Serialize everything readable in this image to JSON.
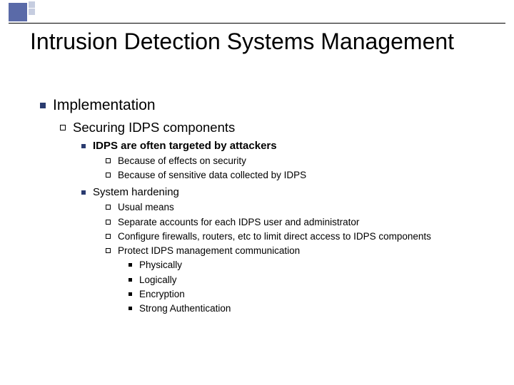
{
  "title": "Intrusion Detection Systems Management",
  "decor": {
    "accent": "#5a6aa8",
    "accent_light": "#c6cde0",
    "bullet_color": "#2a3b6f"
  },
  "body": {
    "l1": "Implementation",
    "l2": "Securing IDPS components",
    "l3a": "IDPS are often targeted by attackers",
    "l3a_sub": [
      "Because of effects on security",
      "Because of sensitive data collected by IDPS"
    ],
    "l3b": "System hardening",
    "l3b_sub": [
      "Usual means",
      "Separate accounts for each IDPS user and administrator",
      "Configure firewalls, routers, etc to limit direct access to IDPS components",
      "Protect IDPS management communication"
    ],
    "l3b_sub4_sub": [
      "Physically",
      "Logically",
      "Encryption",
      "Strong Authentication"
    ]
  }
}
